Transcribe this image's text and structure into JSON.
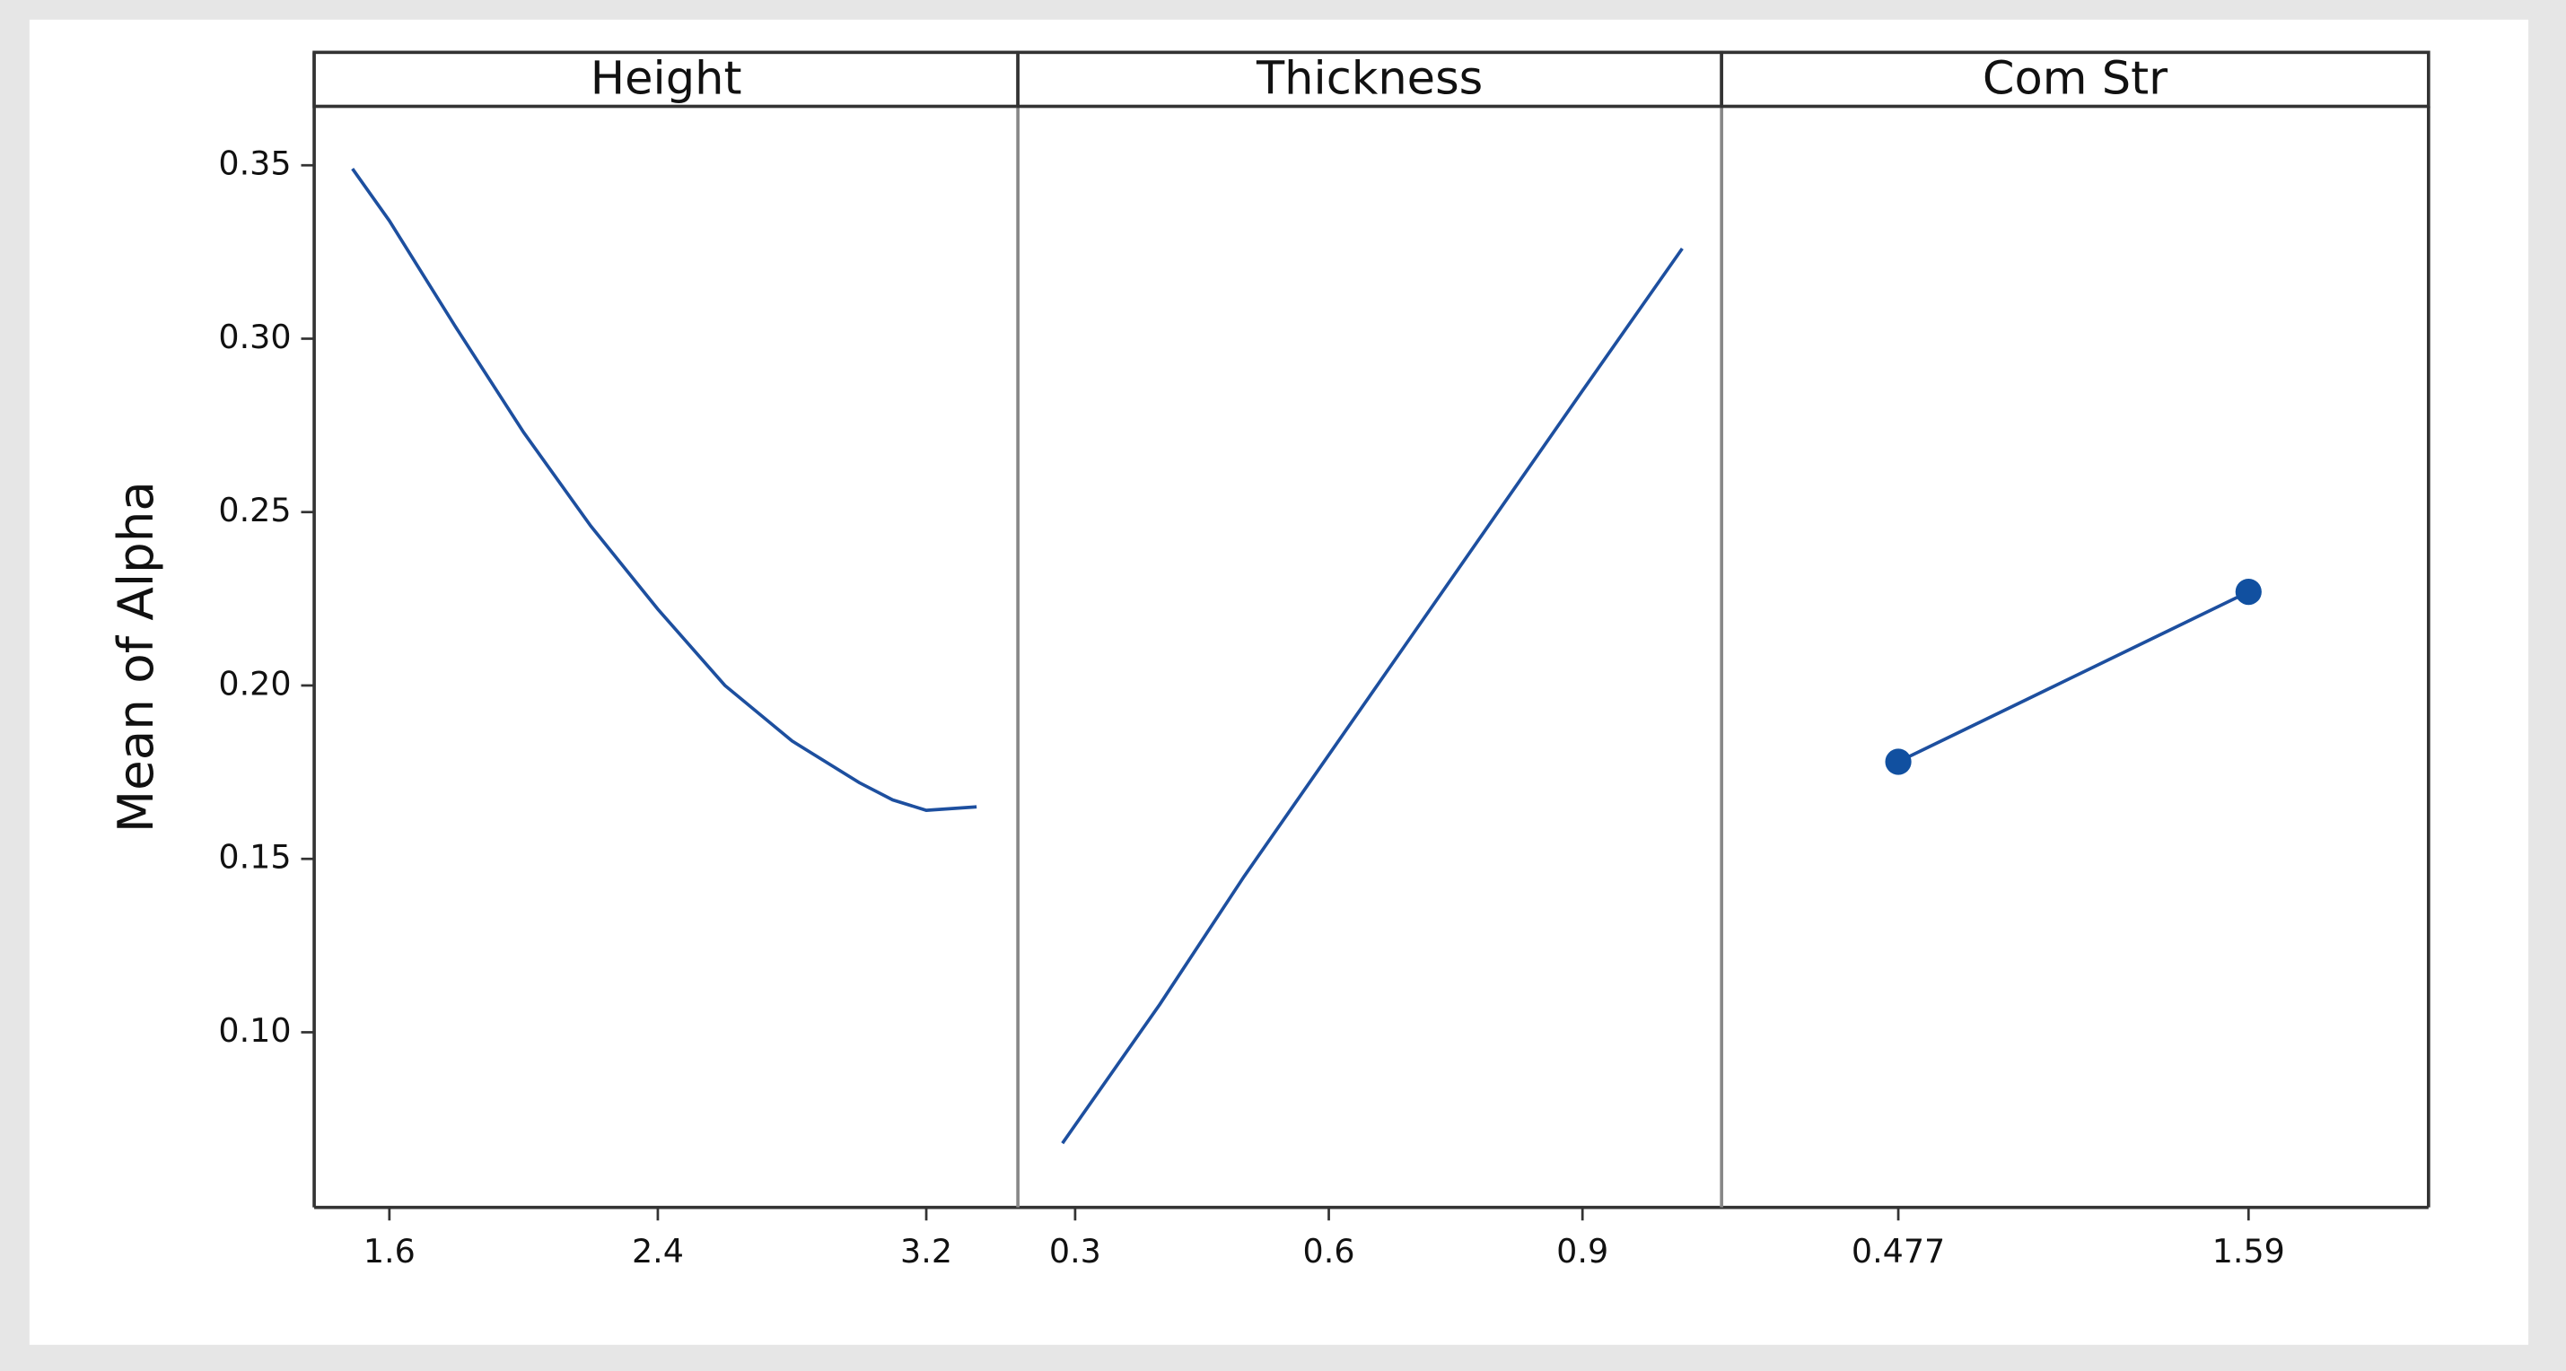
{
  "chart_data": [
    {
      "type": "line",
      "title": "Height",
      "ylabel": "Mean of Alpha",
      "color": "#1d4f9f",
      "markers": false,
      "x": [
        1.49,
        1.6,
        1.8,
        2.0,
        2.2,
        2.4,
        2.6,
        2.8,
        3.0,
        3.1,
        3.2,
        3.35
      ],
      "values": [
        0.349,
        0.334,
        0.303,
        0.273,
        0.246,
        0.222,
        0.2,
        0.184,
        0.172,
        0.167,
        0.164,
        0.165
      ],
      "xlim": [
        1.376,
        3.473
      ],
      "xticks": [
        1.6,
        2.4,
        3.2
      ],
      "ylim": [
        0.0495,
        0.367
      ],
      "yticks": [
        {
          "value": 0.1,
          "label": "0.10"
        },
        0.15,
        {
          "value": 0.2,
          "label": "0.20"
        },
        0.25,
        {
          "value": 0.3,
          "label": "0.30"
        },
        0.35
      ]
    },
    {
      "type": "line",
      "title": "Thickness",
      "color": "#1d4f9f",
      "markers": false,
      "x": [
        0.285,
        0.4,
        0.5,
        0.6,
        0.7,
        0.8,
        0.9,
        1.018
      ],
      "values": [
        0.068,
        0.108,
        0.145,
        0.18,
        0.215,
        0.25,
        0.285,
        0.326
      ],
      "xlim": [
        0.2323,
        1.0645
      ],
      "xticks": [
        0.3,
        0.6,
        0.9
      ]
    },
    {
      "type": "line",
      "title": "Com Str",
      "color": "#1d4f9f",
      "markers": true,
      "x": [
        0.477,
        1.59
      ],
      "values": [
        0.178,
        0.227
      ],
      "xlim": [
        -0.0846,
        2.162
      ],
      "xticks": [
        0.477,
        1.59
      ]
    }
  ]
}
